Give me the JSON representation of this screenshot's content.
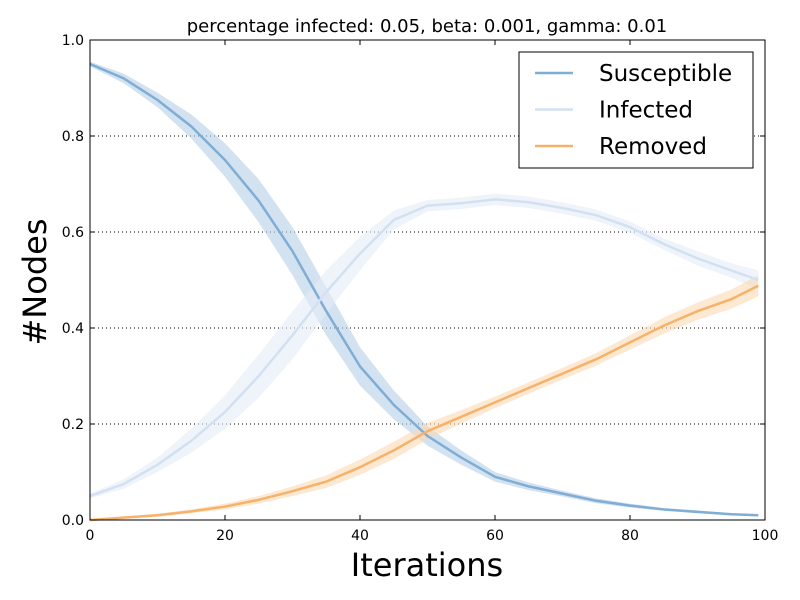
{
  "chart_data": {
    "type": "line",
    "title": "percentage infected: 0.05, beta: 0.001, gamma: 0.01",
    "xlabel": "Iterations",
    "ylabel": "#Nodes",
    "xlim": [
      0,
      100
    ],
    "ylim": [
      0,
      1.0
    ],
    "xticks": [
      "0",
      "20",
      "40",
      "60",
      "80",
      "100"
    ],
    "yticks": [
      "0.0",
      "0.2",
      "0.4",
      "0.6",
      "0.8",
      "1.0"
    ],
    "grid": "horizontal dotted",
    "legend_position": "top-right",
    "x": [
      0,
      5,
      10,
      15,
      20,
      25,
      30,
      35,
      40,
      45,
      50,
      55,
      60,
      65,
      70,
      75,
      80,
      85,
      90,
      95,
      99
    ],
    "series": [
      {
        "name": "Susceptible",
        "color": "#7fadd4",
        "band_color": "#b5cfe6",
        "values": [
          0.95,
          0.92,
          0.875,
          0.82,
          0.75,
          0.665,
          0.56,
          0.435,
          0.32,
          0.24,
          0.175,
          0.13,
          0.09,
          0.07,
          0.055,
          0.04,
          0.03,
          0.022,
          0.017,
          0.012,
          0.01
        ],
        "band": [
          0.005,
          0.01,
          0.015,
          0.025,
          0.035,
          0.045,
          0.05,
          0.05,
          0.04,
          0.03,
          0.02,
          0.015,
          0.01,
          0.008,
          0.006,
          0.005,
          0.004,
          0.003,
          0.003,
          0.002,
          0.002
        ]
      },
      {
        "name": "Infected",
        "color": "#d3e0f2",
        "band_color": "#e4ecf7",
        "values": [
          0.05,
          0.075,
          0.115,
          0.165,
          0.225,
          0.3,
          0.385,
          0.475,
          0.555,
          0.625,
          0.655,
          0.66,
          0.668,
          0.662,
          0.65,
          0.635,
          0.61,
          0.575,
          0.545,
          0.52,
          0.5
        ],
        "band": [
          0.005,
          0.01,
          0.015,
          0.025,
          0.035,
          0.045,
          0.05,
          0.045,
          0.035,
          0.02,
          0.012,
          0.012,
          0.012,
          0.012,
          0.012,
          0.012,
          0.012,
          0.012,
          0.015,
          0.015,
          0.02
        ]
      },
      {
        "name": "Removed",
        "color": "#f6b26b",
        "band_color": "#fbd9b4",
        "values": [
          0.0,
          0.005,
          0.01,
          0.018,
          0.028,
          0.042,
          0.06,
          0.08,
          0.11,
          0.145,
          0.185,
          0.215,
          0.245,
          0.275,
          0.305,
          0.335,
          0.37,
          0.405,
          0.435,
          0.46,
          0.488
        ],
        "band": [
          0.001,
          0.002,
          0.003,
          0.004,
          0.006,
          0.008,
          0.01,
          0.013,
          0.016,
          0.018,
          0.017,
          0.014,
          0.012,
          0.012,
          0.012,
          0.013,
          0.015,
          0.017,
          0.018,
          0.02,
          0.022
        ]
      }
    ]
  }
}
